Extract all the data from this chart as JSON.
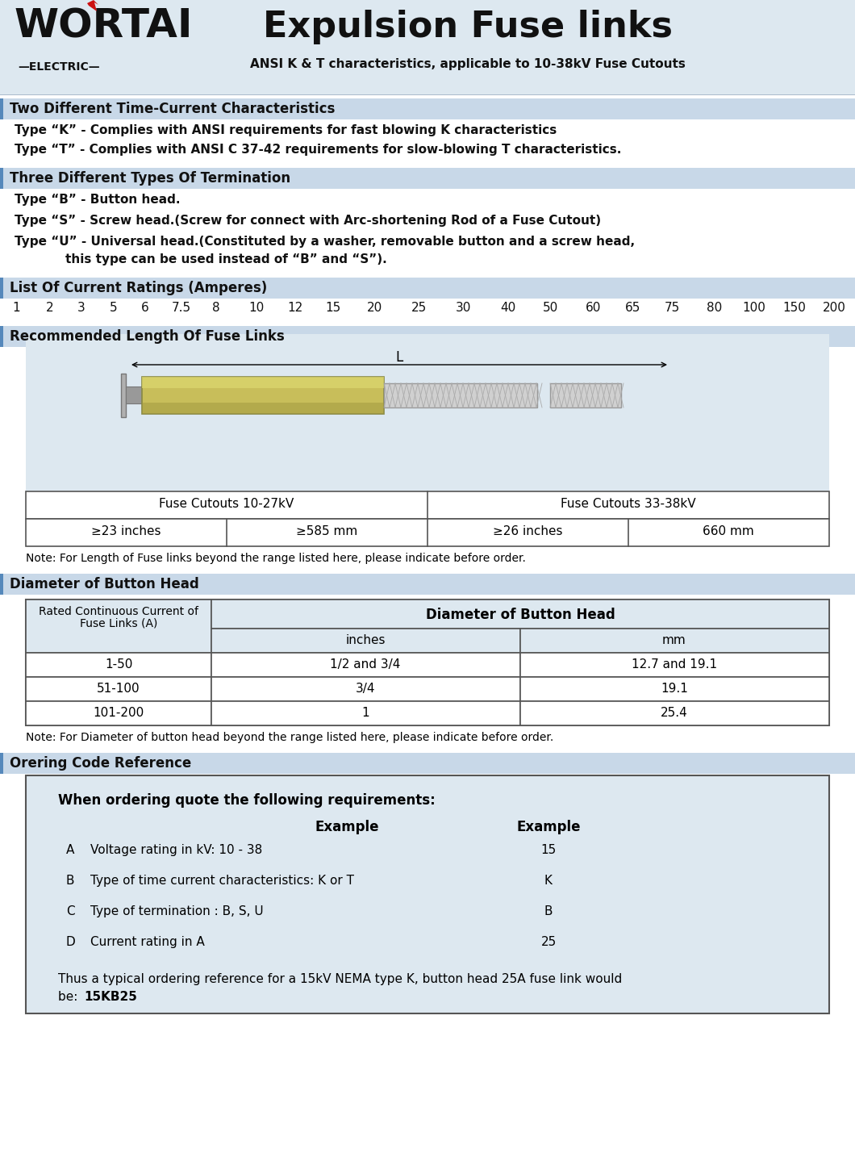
{
  "title": "Expulsion Fuse links",
  "subtitle": "ANSI K & T characteristics, applicable to 10-38kV Fuse Cutouts",
  "logo_text": "WORTAI",
  "logo_sub": "—ELECTRIC—",
  "header_bg": "#dde8f0",
  "white": "#ffffff",
  "section_bg": "#c8d8e8",
  "page_bg": "#ffffff",
  "sections": [
    "Two Different Time-Current Characteristics",
    "Three Different Types Of Termination",
    "List Of Current Ratings (Amperes)",
    "Recommended Length Of Fuse Links",
    "Diameter of Button Head",
    "Orering Code Reference"
  ],
  "type_k_text": "Type “K” - Complies with ANSI requirements for fast blowing K characteristics",
  "type_t_text": "Type “T” - Complies with ANSI C 37-42 requirements for slow-blowing T characteristics.",
  "type_b_text": "Type “B” - Button head.",
  "type_s_text": "Type “S” - Screw head.(Screw for connect with Arc-shortening Rod of a Fuse Cutout)",
  "type_u_line1": "Type “U” - Universal head.(Constituted by a washer, removable button and a screw head,",
  "type_u_line2": "    this type can be used instead of “B” and “S”).",
  "current_ratings": [
    "1",
    "2",
    "3",
    "5",
    "6",
    "7.5",
    "8",
    "10",
    "12",
    "15",
    "20",
    "25",
    "30",
    "40",
    "50",
    "60",
    "65",
    "75",
    "80",
    "100",
    "150",
    "200"
  ],
  "fuse_table_headers": [
    "Fuse Cutouts 10-27kV",
    "Fuse Cutouts 33-38kV"
  ],
  "fuse_table_row": [
    "≥23 inches",
    "≥585 mm",
    "≥26 inches",
    "660 mm"
  ],
  "length_note": "Note: For Length of Fuse links beyond the range listed here, please indicate before order.",
  "button_head_col1_header": "Rated Continuous Current of\nFuse Links (A)",
  "button_head_col2_header": "Diameter of Button Head",
  "button_head_sub_headers": [
    "inches",
    "mm"
  ],
  "button_head_rows": [
    [
      "1-50",
      "1/2 and 3/4",
      "12.7 and 19.1"
    ],
    [
      "51-100",
      "3/4",
      "19.1"
    ],
    [
      "101-200",
      "1",
      "25.4"
    ]
  ],
  "button_note": "Note: For Diameter of button head beyond the range listed here, please indicate before order.",
  "ordering_title": "When ordering quote the following requirements:",
  "ordering_example_col1": "Example",
  "ordering_example_col2": "Example",
  "ordering_items": [
    [
      "A",
      "Voltage rating in kV: 10 - 38",
      "15"
    ],
    [
      "B",
      "Type of time current characteristics: K or T",
      "K"
    ],
    [
      "C",
      "Type of termination : B, S, U",
      "B"
    ],
    [
      "D",
      "Current rating in A",
      "25"
    ]
  ],
  "ordering_footer1": "Thus a typical ordering reference for a 15kV NEMA type K, button head 25A fuse link would",
  "ordering_footer2_plain": "be: ",
  "ordering_footer2_bold": "15KB25"
}
